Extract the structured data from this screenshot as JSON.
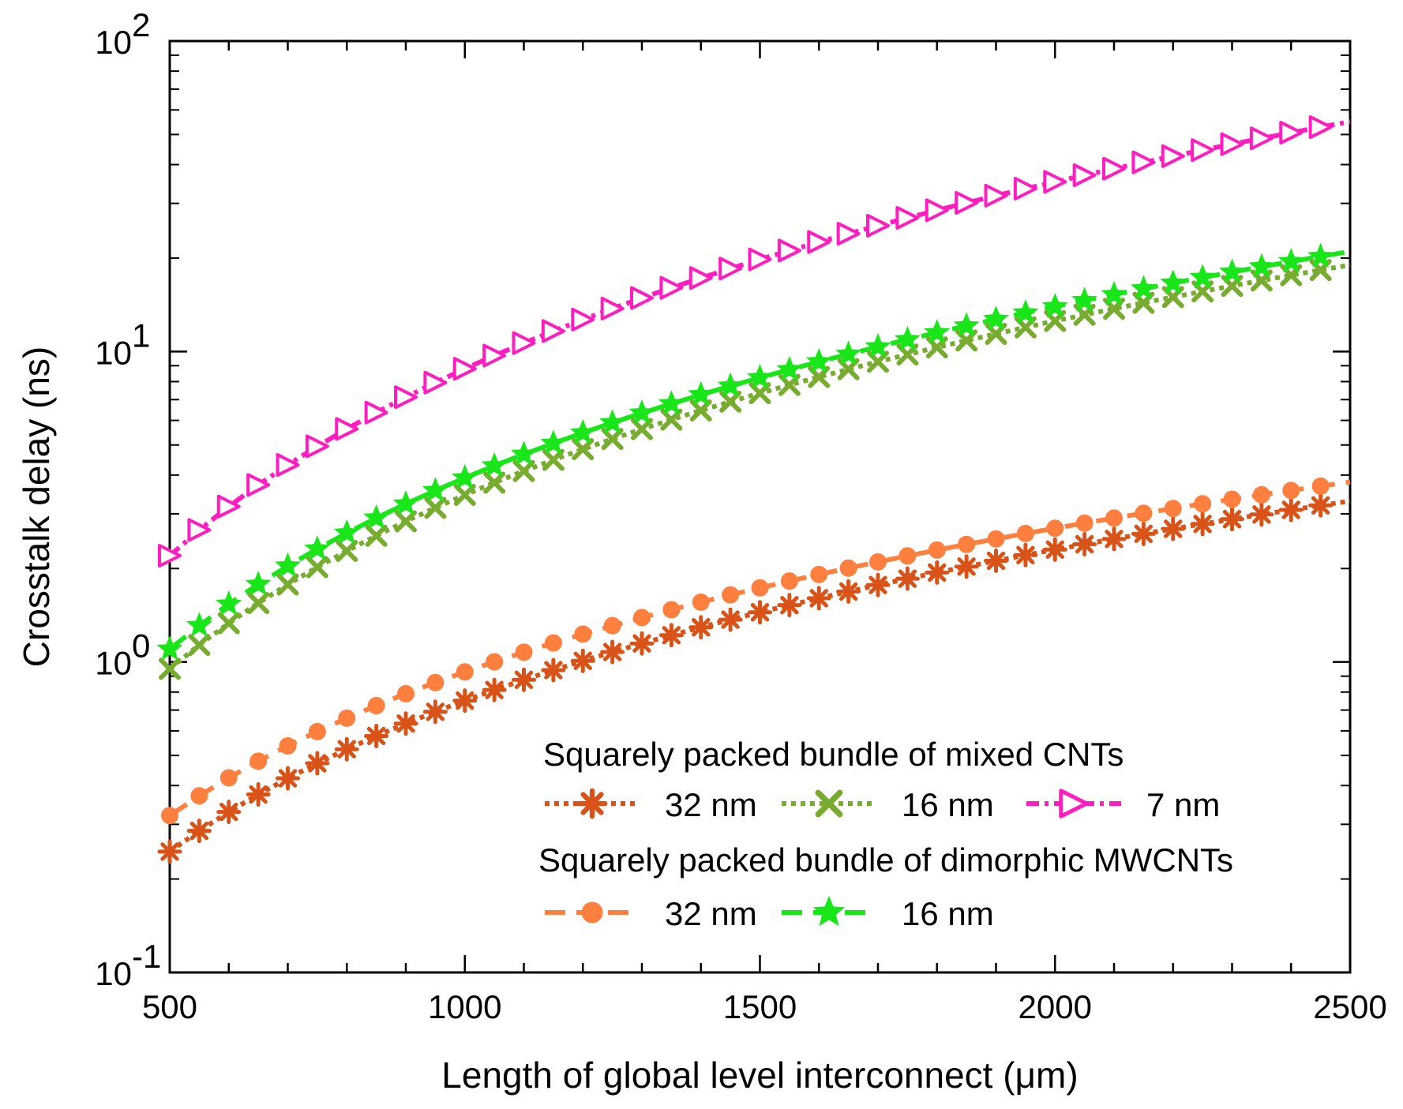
{
  "chart_data": {
    "type": "line",
    "title": "",
    "xlabel": "Length of global level interconnect (μm)",
    "ylabel": "Crosstalk delay (ns)",
    "xlim": [
      500,
      2500
    ],
    "ylim": [
      0.1,
      100
    ],
    "yscale": "log",
    "grid": false,
    "x_ticks": [
      "500",
      "1000",
      "1500",
      "2000",
      "2500"
    ],
    "y_ticks": [
      {
        "base": "10",
        "exp": "-1"
      },
      {
        "base": "10",
        "exp": "0"
      },
      {
        "base": "10",
        "exp": "1"
      },
      {
        "base": "10",
        "exp": "2"
      }
    ],
    "legend": {
      "position": "bottom-right",
      "groups": [
        {
          "title": "Squarely packed bundle of mixed CNTs",
          "entries": [
            "32 nm",
            "16 nm",
            "7 nm"
          ]
        },
        {
          "title": "Squarely packed bundle of dimorphic MWCNTs",
          "entries": [
            "32 nm",
            "16 nm"
          ]
        }
      ]
    },
    "series": [
      {
        "name": "Mixed CNTs 32 nm",
        "color": "#d95319",
        "style": "dotted",
        "marker": "asterisk",
        "y0": 0.245,
        "y1": 3.3
      },
      {
        "name": "Mixed CNTs 16 nm",
        "color": "#77ac30",
        "style": "dotted",
        "marker": "x",
        "y0": 0.95,
        "y1": 19
      },
      {
        "name": "Mixed CNTs 7 nm",
        "color": "#ff1dc0",
        "style": "dashdot",
        "marker": "triangle-right",
        "y0": 2.2,
        "y1": 55
      },
      {
        "name": "Dimorphic MWCNTs 32 nm",
        "color": "#ff7f3f",
        "style": "dashed",
        "marker": "circle",
        "y0": 0.32,
        "y1": 3.8
      },
      {
        "name": "Dimorphic MWCNTs 16 nm",
        "color": "#19e619",
        "style": "dashed",
        "marker": "star",
        "y0": 1.1,
        "y1": 21
      }
    ]
  }
}
